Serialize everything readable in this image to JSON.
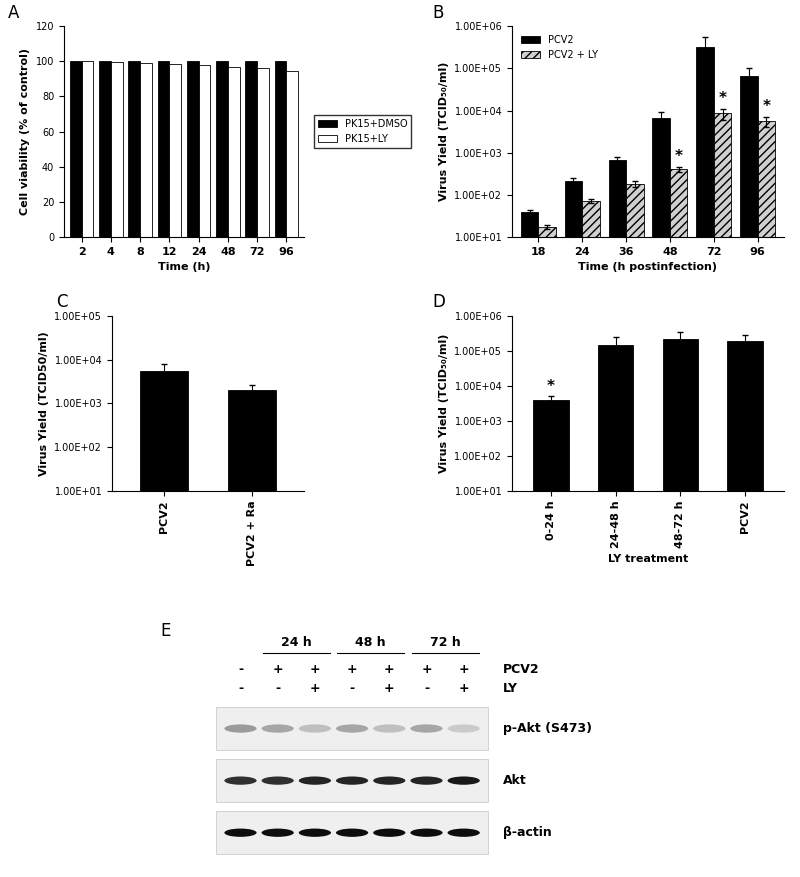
{
  "chart_data": [
    {
      "panel": "A",
      "type": "bar",
      "x_label": "Time (h)",
      "y_label": "Cell viability (% of control)",
      "categories": [
        "2",
        "4",
        "8",
        "12",
        "24",
        "48",
        "72",
        "96"
      ],
      "series": [
        {
          "name": "PK15+DMSO",
          "color": "#000000",
          "values": [
            100,
            100,
            100,
            100,
            100,
            100,
            100,
            100
          ]
        },
        {
          "name": "PK15+LY",
          "color": "#ffffff",
          "values": [
            100,
            99.5,
            99,
            98.5,
            98,
            97,
            96,
            94.5
          ]
        }
      ],
      "ylim": [
        0,
        120
      ],
      "yticks": [
        0,
        20,
        40,
        60,
        80,
        100,
        120
      ],
      "legend": "right",
      "grid": false
    },
    {
      "panel": "B",
      "type": "bar",
      "x_label": "Time (h postinfection)",
      "y_label": "Virus Yield (TCID₅₀/ml)",
      "categories": [
        "18",
        "24",
        "36",
        "48",
        "72",
        "96"
      ],
      "series": [
        {
          "name": "PCV2",
          "color": "#000000",
          "values": [
            38,
            210,
            650,
            6500,
            320000,
            65000
          ],
          "errors": [
            5,
            40,
            120,
            2500,
            250000,
            40000
          ]
        },
        {
          "name": "PCV2 + LY",
          "color": "#d0d0d0",
          "values": [
            17,
            70,
            180,
            400,
            8500,
            5500
          ],
          "errors": [
            2,
            8,
            30,
            60,
            2500,
            1500
          ]
        }
      ],
      "annotations": [
        {
          "category": "48",
          "series": "PCV2 + LY",
          "text": "*"
        },
        {
          "category": "72",
          "series": "PCV2 + LY",
          "text": "*"
        },
        {
          "category": "96",
          "series": "PCV2 + LY",
          "text": "*"
        }
      ],
      "log": "y",
      "ylim": [
        10,
        1000000
      ],
      "yticks": [
        {
          "value": 10,
          "label": "1.00E+01"
        },
        {
          "value": 100,
          "label": "1.00E+02"
        },
        {
          "value": 1000,
          "label": "1.00E+03"
        },
        {
          "value": 10000,
          "label": "1.00E+04"
        },
        {
          "value": 100000,
          "label": "1.00E+05"
        },
        {
          "value": 1000000,
          "label": "1.00E+06"
        }
      ],
      "legend": "upper left",
      "grid": false
    },
    {
      "panel": "C",
      "type": "bar",
      "y_label": "Virus Yield (TCID50/ml)",
      "categories": [
        "PCV2",
        "PCV2 + Ra"
      ],
      "series": [
        {
          "color": "#000000",
          "values": [
            5500,
            2000
          ],
          "errors": [
            2500,
            600
          ]
        }
      ],
      "log": "y",
      "ylim": [
        10,
        100000
      ],
      "yticks": [
        {
          "value": 10,
          "label": "1.00E+01"
        },
        {
          "value": 100,
          "label": "1.00E+02"
        },
        {
          "value": 1000,
          "label": "1.00E+03"
        },
        {
          "value": 10000,
          "label": "1.00E+04"
        },
        {
          "value": 100000,
          "label": "1.00E+05"
        }
      ],
      "grid": false
    },
    {
      "panel": "D",
      "type": "bar",
      "x_label": "LY treatment",
      "y_label": "Virus Yield (TCID₅₀/ml)",
      "categories": [
        "0-24 h",
        "24-48 h",
        "48-72 h",
        "PCV2"
      ],
      "series": [
        {
          "color": "#000000",
          "values": [
            4000,
            150000,
            220000,
            190000
          ],
          "errors": [
            1000,
            90000,
            130000,
            100000
          ]
        }
      ],
      "annotations": [
        {
          "category": "0-24 h",
          "text": "*"
        }
      ],
      "log": "y",
      "ylim": [
        10,
        1000000
      ],
      "yticks": [
        {
          "value": 10,
          "label": "1.00E+01"
        },
        {
          "value": 100,
          "label": "1.00E+02"
        },
        {
          "value": 1000,
          "label": "1.00E+03"
        },
        {
          "value": 10000,
          "label": "1.00E+04"
        },
        {
          "value": 100000,
          "label": "1.00E+05"
        },
        {
          "value": 1000000,
          "label": "1.00E+06"
        }
      ],
      "grid": false
    }
  ],
  "blot": {
    "panel": "E",
    "time_groups": [
      {
        "label": "24 h",
        "lanes": [
          1,
          2
        ]
      },
      {
        "label": "48 h",
        "lanes": [
          3,
          4
        ]
      },
      {
        "label": "72 h",
        "lanes": [
          5,
          6
        ]
      }
    ],
    "conditions": [
      {
        "name": "PCV2",
        "signs": [
          "-",
          "+",
          "+",
          "+",
          "+",
          "+",
          "+"
        ]
      },
      {
        "name": "LY",
        "signs": [
          "-",
          "-",
          "+",
          "-",
          "+",
          "-",
          "+"
        ]
      }
    ],
    "bands": [
      {
        "name": "p-Akt (S473)",
        "intensities": [
          0.35,
          0.3,
          0.2,
          0.3,
          0.2,
          0.3,
          0.15
        ]
      },
      {
        "name": "Akt",
        "intensities": [
          0.8,
          0.8,
          0.85,
          0.85,
          0.85,
          0.85,
          0.9
        ]
      },
      {
        "name": "β-actin",
        "intensities": [
          0.95,
          0.95,
          0.95,
          0.95,
          0.95,
          0.95,
          0.95
        ]
      }
    ]
  }
}
